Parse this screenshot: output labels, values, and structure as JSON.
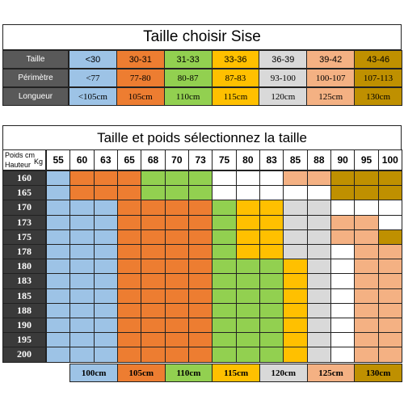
{
  "top": {
    "title": "Taille choisir Sise",
    "rows": [
      {
        "label": "Taille",
        "cells": [
          "<30",
          "30-31",
          "31-33",
          "33-36",
          "36-39",
          "39-42",
          "43-46"
        ]
      },
      {
        "label": "Périmètre",
        "cells": [
          "<77",
          "77-80",
          "80-87",
          "87-83",
          "93-100",
          "100-107",
          "107-113"
        ]
      },
      {
        "label": "Longueur",
        "cells": [
          "<105cm",
          "105cm",
          "110cm",
          "115cm",
          "120cm",
          "125cm",
          "130cm"
        ]
      }
    ],
    "colors": [
      "#9dc3e6",
      "#ed7d31",
      "#92d050",
      "#ffc000",
      "#d9d9d9",
      "#f4b183",
      "#bf9000"
    ]
  },
  "grid": {
    "title": "Taille et poids sélectionnez la taille",
    "corner_top": "Poids cm",
    "corner_unit": "Kg",
    "corner_bottom": "Hauteur",
    "weights": [
      "55",
      "60",
      "63",
      "65",
      "68",
      "70",
      "73",
      "75",
      "80",
      "83",
      "85",
      "88",
      "90",
      "95",
      "100"
    ],
    "heights": [
      "160",
      "165",
      "170",
      "173",
      "175",
      "178",
      "180",
      "183",
      "185",
      "188",
      "190",
      "195",
      "200"
    ],
    "colors": [
      [
        "#9dc3e6",
        "#ed7d31",
        "#ed7d31",
        "#ed7d31",
        "#92d050",
        "#92d050",
        "#92d050",
        "#ffffff",
        "#ffffff",
        "#ffffff",
        "#f4b183",
        "#f4b183",
        "#bf9000",
        "#bf9000",
        "#bf9000"
      ],
      [
        "#9dc3e6",
        "#ed7d31",
        "#ed7d31",
        "#ed7d31",
        "#92d050",
        "#92d050",
        "#92d050",
        "#ffffff",
        "#ffffff",
        "#ffffff",
        "#ffffff",
        "#ffffff",
        "#bf9000",
        "#bf9000",
        "#bf9000"
      ],
      [
        "#9dc3e6",
        "#9dc3e6",
        "#9dc3e6",
        "#ed7d31",
        "#ed7d31",
        "#ed7d31",
        "#ed7d31",
        "#92d050",
        "#ffc000",
        "#ffc000",
        "#d9d9d9",
        "#d9d9d9",
        "#ffffff",
        "#ffffff",
        "#ffffff"
      ],
      [
        "#9dc3e6",
        "#9dc3e6",
        "#9dc3e6",
        "#ed7d31",
        "#ed7d31",
        "#ed7d31",
        "#ed7d31",
        "#92d050",
        "#ffc000",
        "#ffc000",
        "#d9d9d9",
        "#d9d9d9",
        "#f4b183",
        "#f4b183",
        "#ffffff"
      ],
      [
        "#9dc3e6",
        "#9dc3e6",
        "#9dc3e6",
        "#ed7d31",
        "#ed7d31",
        "#ed7d31",
        "#ed7d31",
        "#92d050",
        "#ffc000",
        "#ffc000",
        "#d9d9d9",
        "#d9d9d9",
        "#f4b183",
        "#f4b183",
        "#bf9000"
      ],
      [
        "#9dc3e6",
        "#9dc3e6",
        "#9dc3e6",
        "#ed7d31",
        "#ed7d31",
        "#ed7d31",
        "#ed7d31",
        "#92d050",
        "#ffc000",
        "#ffc000",
        "#d9d9d9",
        "#d9d9d9",
        "#ffffff",
        "#f4b183",
        "#f4b183"
      ],
      [
        "#9dc3e6",
        "#9dc3e6",
        "#9dc3e6",
        "#ed7d31",
        "#ed7d31",
        "#ed7d31",
        "#ed7d31",
        "#92d050",
        "#92d050",
        "#92d050",
        "#ffc000",
        "#d9d9d9",
        "#ffffff",
        "#f4b183",
        "#f4b183"
      ],
      [
        "#9dc3e6",
        "#9dc3e6",
        "#9dc3e6",
        "#ed7d31",
        "#ed7d31",
        "#ed7d31",
        "#ed7d31",
        "#92d050",
        "#92d050",
        "#92d050",
        "#ffc000",
        "#d9d9d9",
        "#ffffff",
        "#f4b183",
        "#f4b183"
      ],
      [
        "#9dc3e6",
        "#9dc3e6",
        "#9dc3e6",
        "#ed7d31",
        "#ed7d31",
        "#ed7d31",
        "#ed7d31",
        "#92d050",
        "#92d050",
        "#92d050",
        "#ffc000",
        "#d9d9d9",
        "#ffffff",
        "#f4b183",
        "#f4b183"
      ],
      [
        "#9dc3e6",
        "#9dc3e6",
        "#9dc3e6",
        "#ed7d31",
        "#ed7d31",
        "#ed7d31",
        "#ed7d31",
        "#92d050",
        "#92d050",
        "#92d050",
        "#ffc000",
        "#d9d9d9",
        "#ffffff",
        "#f4b183",
        "#f4b183"
      ],
      [
        "#9dc3e6",
        "#9dc3e6",
        "#9dc3e6",
        "#ed7d31",
        "#ed7d31",
        "#ed7d31",
        "#ed7d31",
        "#92d050",
        "#92d050",
        "#92d050",
        "#ffc000",
        "#d9d9d9",
        "#ffffff",
        "#f4b183",
        "#f4b183"
      ],
      [
        "#9dc3e6",
        "#9dc3e6",
        "#9dc3e6",
        "#ed7d31",
        "#ed7d31",
        "#ed7d31",
        "#ed7d31",
        "#92d050",
        "#92d050",
        "#92d050",
        "#ffc000",
        "#d9d9d9",
        "#ffffff",
        "#f4b183",
        "#f4b183"
      ],
      [
        "#9dc3e6",
        "#9dc3e6",
        "#9dc3e6",
        "#ed7d31",
        "#ed7d31",
        "#ed7d31",
        "#ed7d31",
        "#92d050",
        "#92d050",
        "#92d050",
        "#ffc000",
        "#d9d9d9",
        "#ffffff",
        "#f4b183",
        "#f4b183"
      ]
    ]
  },
  "legend": {
    "labels": [
      "100cm",
      "105cm",
      "110cm",
      "115cm",
      "120cm",
      "125cm",
      "130cm"
    ],
    "colors": [
      "#9dc3e6",
      "#ed7d31",
      "#92d050",
      "#ffc000",
      "#d9d9d9",
      "#f4b183",
      "#bf9000"
    ]
  }
}
